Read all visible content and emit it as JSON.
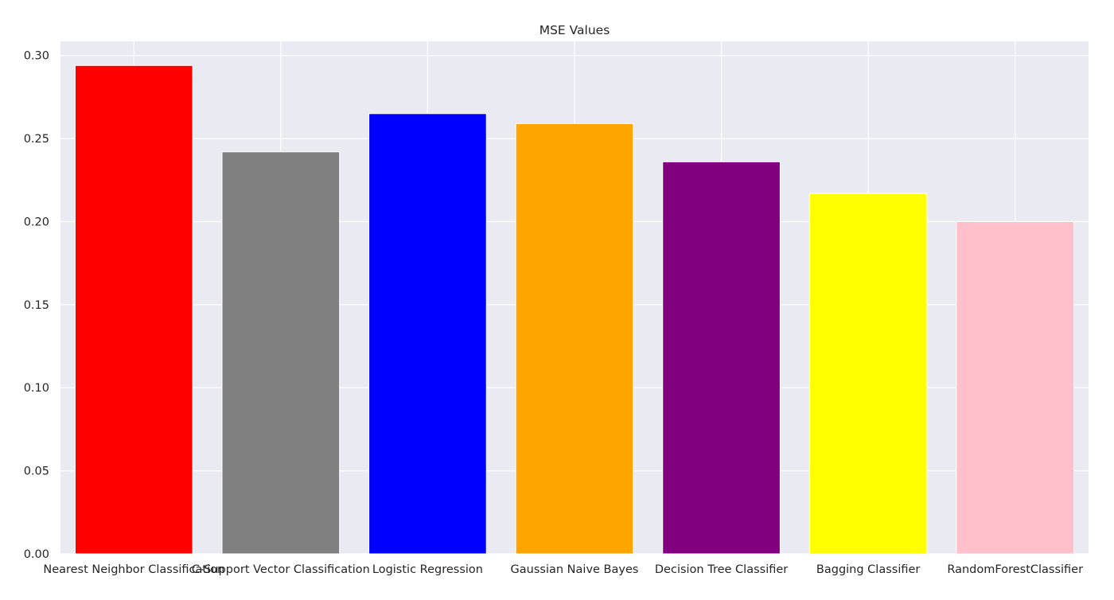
{
  "chart_data": {
    "type": "bar",
    "title": "MSE Values",
    "xlabel": "",
    "ylabel": "",
    "categories": [
      "Nearest Neighbor Classification",
      "C-Support Vector Classification",
      "Logistic Regression",
      "Gaussian Naive Bayes",
      "Decision Tree Classifier",
      "Bagging Classifier",
      "RandomForestClassifier"
    ],
    "values": [
      0.294,
      0.242,
      0.265,
      0.259,
      0.236,
      0.217,
      0.2
    ],
    "colors": [
      "#ff0000",
      "#808080",
      "#0000ff",
      "#ffa500",
      "#800080",
      "#ffff00",
      "#ffc0cb"
    ],
    "ylim": [
      0,
      0.3085
    ],
    "yticks": [
      0.0,
      0.05,
      0.1,
      0.15,
      0.2,
      0.25,
      0.3
    ],
    "ytick_labels": [
      "0.00",
      "0.05",
      "0.10",
      "0.15",
      "0.20",
      "0.25",
      "0.30"
    ],
    "grid": true,
    "background": "#eaeaf2",
    "grid_color": "#ffffff"
  }
}
